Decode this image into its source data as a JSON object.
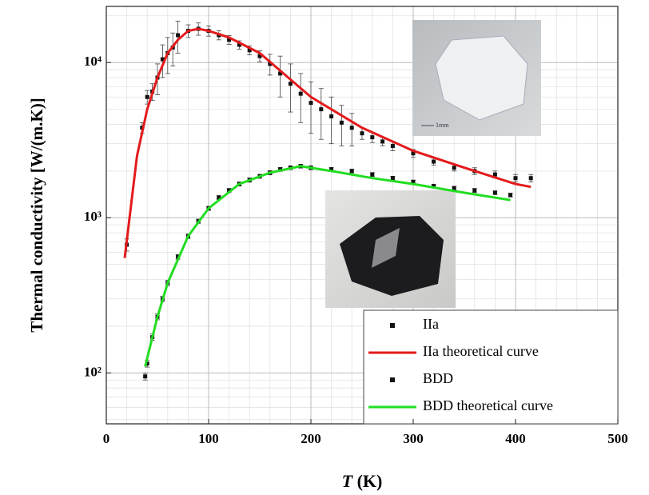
{
  "chart_data": {
    "type": "scatter",
    "y_label": "Thermal conductivity [W/(m.K)]",
    "x_label_symbol": "T",
    "x_label_unit": "(K)",
    "inset_scale_label": "1mm",
    "xlim": [
      0,
      500
    ],
    "xticks": [
      0,
      100,
      200,
      300,
      400,
      500
    ],
    "ylim": [
      47,
      23000
    ],
    "yticks": [
      {
        "value": 100,
        "label": "10²"
      },
      {
        "value": 1000,
        "label": "10³"
      },
      {
        "value": 10000,
        "label": "10⁴"
      }
    ],
    "log_y": true,
    "grid": true,
    "legend": "lower right",
    "series": [
      {
        "name": "IIa",
        "mode": "markers",
        "color": "#111111",
        "x": [
          20,
          35,
          40,
          45,
          50,
          55,
          60,
          65,
          70,
          80,
          90,
          100,
          110,
          120,
          130,
          140,
          150,
          160,
          170,
          180,
          190,
          200,
          210,
          220,
          230,
          240,
          250,
          260,
          270,
          280,
          300,
          320,
          340,
          360,
          380,
          400,
          415
        ],
        "values": [
          670,
          3800,
          6000,
          6500,
          8000,
          10500,
          11500,
          12500,
          15000,
          16000,
          16500,
          16000,
          15000,
          14000,
          13000,
          12000,
          11000,
          9800,
          8500,
          7300,
          6300,
          5500,
          5000,
          4500,
          4100,
          3800,
          3500,
          3300,
          3100,
          2900,
          2600,
          2300,
          2100,
          2000,
          1900,
          1800,
          1800
        ],
        "errors": [
          60,
          300,
          600,
          800,
          1800,
          2500,
          3000,
          3000,
          3500,
          1500,
          1500,
          1200,
          1000,
          900,
          800,
          800,
          900,
          1500,
          2500,
          2500,
          2200,
          2000,
          1800,
          1500,
          1200,
          900,
          300,
          250,
          200,
          200,
          150,
          120,
          100,
          100,
          100,
          100,
          100
        ]
      },
      {
        "name": "IIa theoretical curve",
        "mode": "lines",
        "color": "#e41a1c",
        "x": [
          18,
          30,
          40,
          50,
          60,
          70,
          80,
          90,
          100,
          120,
          150,
          200,
          250,
          300,
          350,
          400,
          415
        ],
        "values": [
          550,
          2500,
          5000,
          8000,
          11500,
          14000,
          16000,
          16500,
          16000,
          14500,
          11500,
          6000,
          3800,
          2700,
          2100,
          1650,
          1580
        ]
      },
      {
        "name": "BDD",
        "mode": "markers",
        "color": "#111111",
        "x": [
          38,
          40,
          45,
          50,
          55,
          60,
          70,
          80,
          90,
          100,
          110,
          120,
          130,
          140,
          150,
          160,
          170,
          180,
          190,
          200,
          220,
          240,
          260,
          280,
          300,
          320,
          340,
          360,
          380,
          395
        ],
        "values": [
          95,
          115,
          170,
          230,
          300,
          380,
          560,
          760,
          950,
          1150,
          1350,
          1500,
          1650,
          1750,
          1850,
          1950,
          2050,
          2100,
          2150,
          2100,
          2050,
          2000,
          1900,
          1800,
          1700,
          1600,
          1550,
          1500,
          1450,
          1400
        ],
        "errors": [
          5,
          6,
          8,
          10,
          12,
          15,
          20,
          25,
          30,
          35,
          40,
          45,
          50,
          55,
          55,
          60,
          60,
          60,
          60,
          60,
          60,
          55,
          55,
          50,
          50,
          45,
          45,
          45,
          40,
          40
        ]
      },
      {
        "name": "BDD theoretical curve",
        "mode": "lines",
        "color": "#22dd22",
        "x": [
          38,
          50,
          60,
          80,
          100,
          130,
          160,
          190,
          220,
          260,
          300,
          350,
          395
        ],
        "values": [
          110,
          230,
          380,
          760,
          1150,
          1650,
          1950,
          2150,
          2000,
          1800,
          1650,
          1450,
          1300
        ]
      }
    ]
  }
}
